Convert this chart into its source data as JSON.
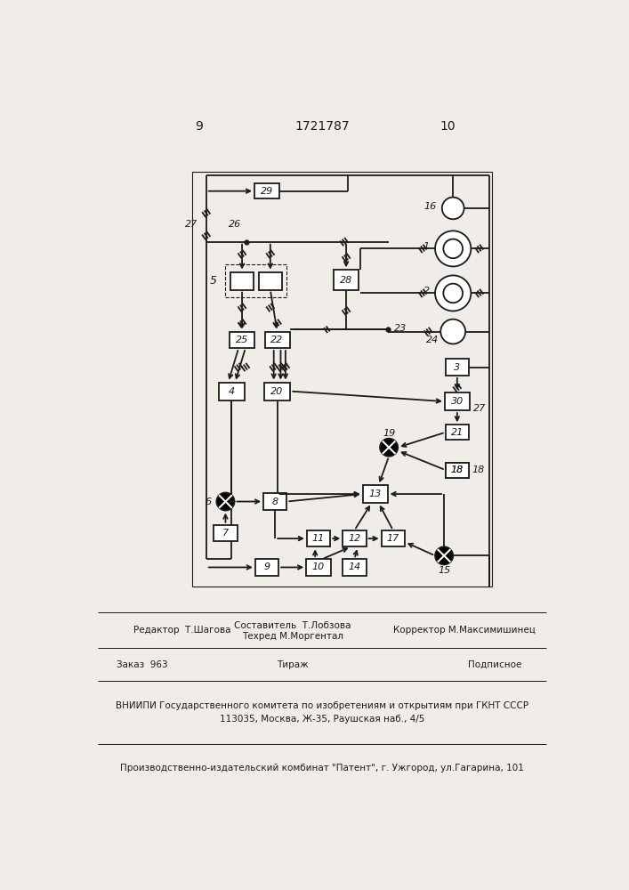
{
  "page_left": "9",
  "page_center": "1721787",
  "page_right": "10",
  "bg_color": "#f0ede8",
  "lc": "#1a1a1a",
  "footer1_col1": "Редактор  Т.Шагова",
  "footer1_col2a": "Составитель  Т.Лобзова",
  "footer1_col2b": "Техред М.Моргентал",
  "footer1_col3": "Корректор М.Максимишинец",
  "footer2_col1": "Заказ  963",
  "footer2_col2": "Тираж",
  "footer2_col3": "Подписное",
  "footer3": "ВНИИПИ Государственного комитета по изобретениям и открытиям при ГКНТ СССР",
  "footer4": "113035, Москва, Ж-35, Раушская наб., 4/5",
  "footer5": "Производственно-издательский комбинат \"Патент\", г. Ужгород, ул.Гагарина, 101"
}
